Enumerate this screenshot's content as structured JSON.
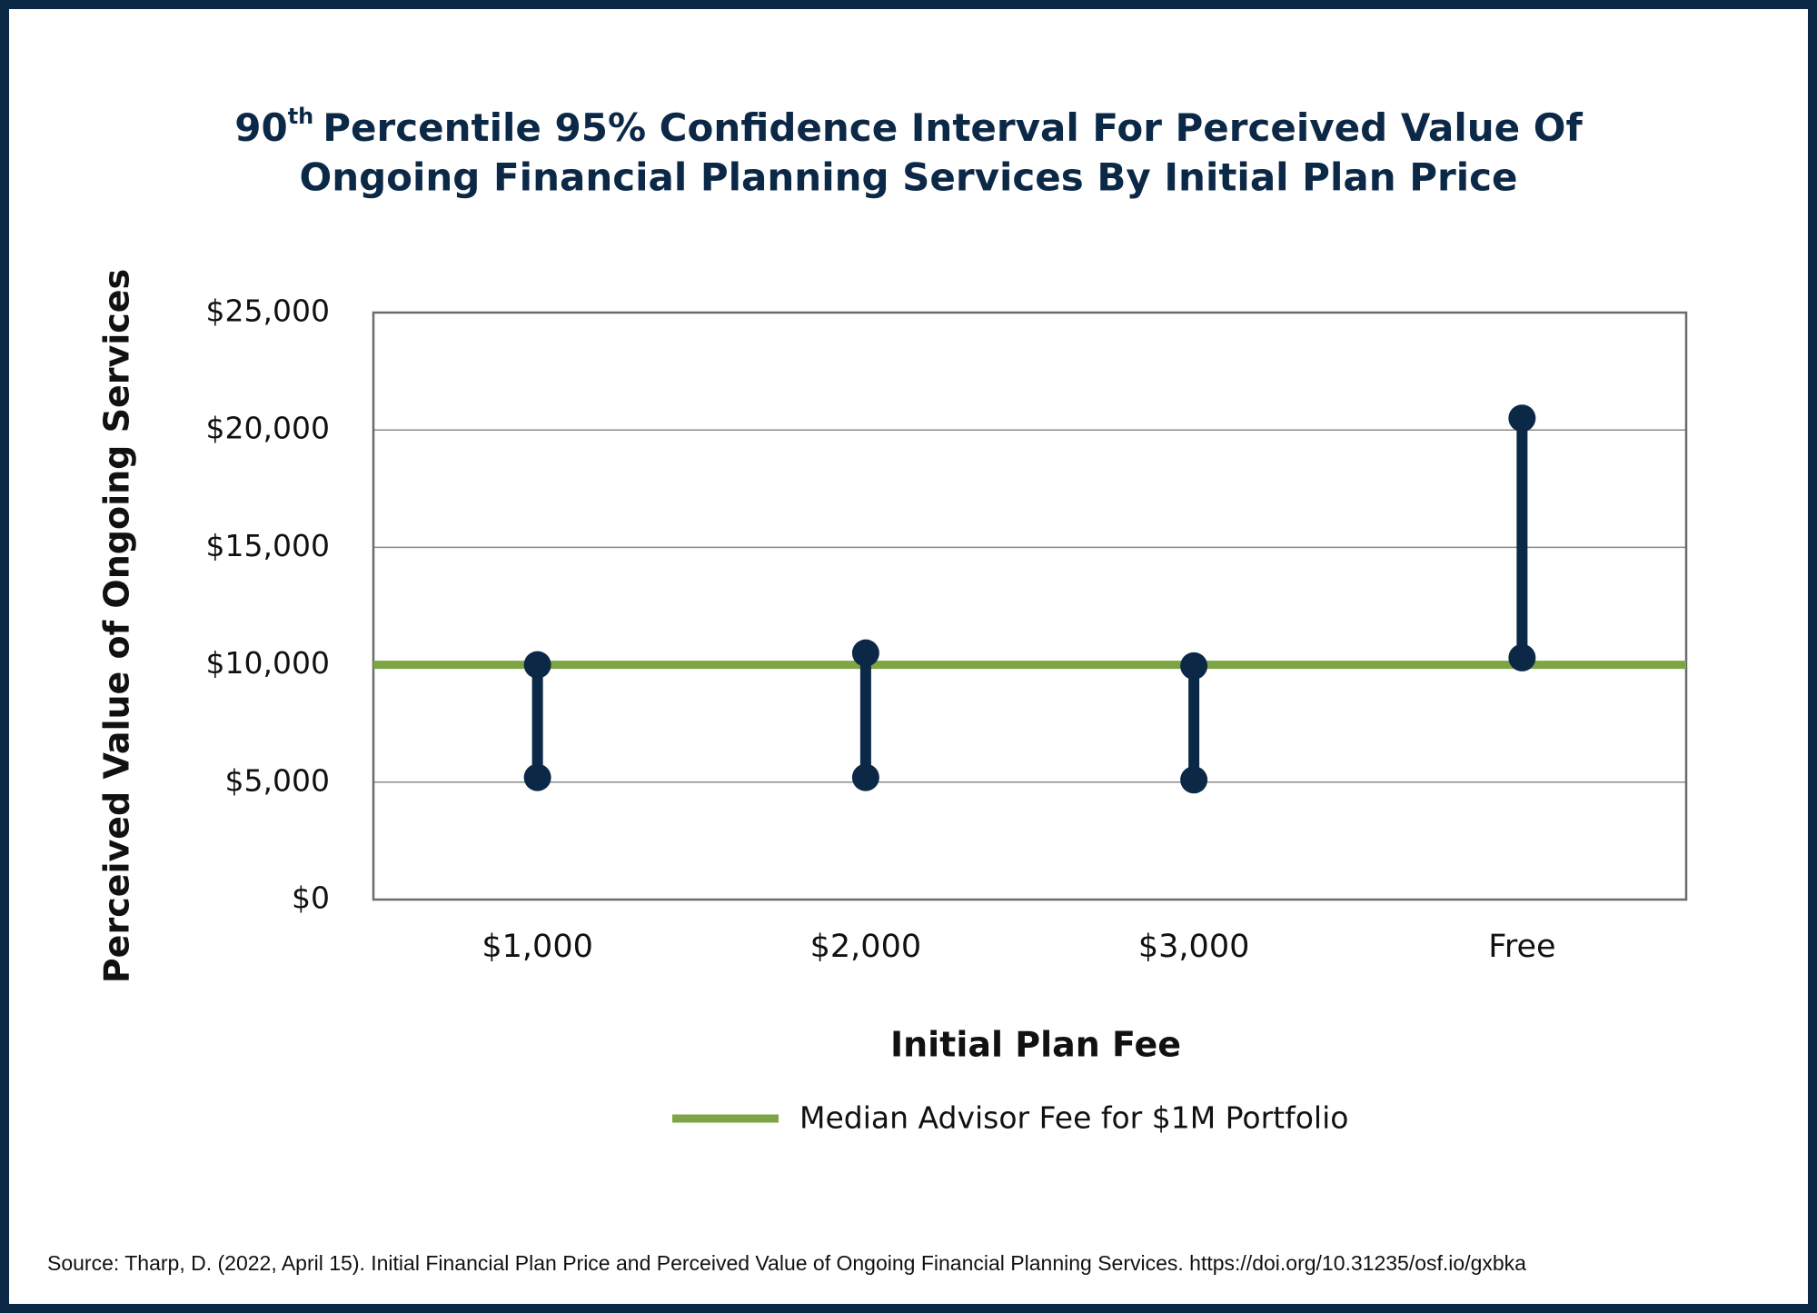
{
  "chart_data": {
    "type": "range",
    "title_number": "90",
    "title_superscript": "th",
    "title_line1": "Percentile 95% Confidence Interval For Perceived Value Of",
    "title_line2": "Ongoing Financial Planning Services By Initial Plan Price",
    "x_label": "Initial Plan Fee",
    "y_label": "Perceived Value of Ongoing Services",
    "categories": [
      "$1,000",
      "$2,000",
      "$3,000",
      "Free"
    ],
    "low": [
      5200,
      5200,
      5100,
      10300
    ],
    "high": [
      10000,
      10500,
      9950,
      20500
    ],
    "color": "#0c2847",
    "reference_line": {
      "value": 10000,
      "label": "Median Advisor Fee for $1M Portfolio",
      "color": "#7ea544"
    },
    "ylim": [
      0,
      25000
    ],
    "yticks": [
      {
        "value": 0,
        "label": "$0"
      },
      {
        "value": 5000,
        "label": "$5,000"
      },
      {
        "value": 10000,
        "label": "$10,000"
      },
      {
        "value": 15000,
        "label": "$15,000"
      },
      {
        "value": 20000,
        "label": "$20,000"
      },
      {
        "value": 25000,
        "label": "$25,000"
      }
    ],
    "grid": true,
    "source": "Source: Tharp, D. (2022, April 15). Initial Financial Plan Price and Perceived Value of Ongoing Financial Planning Services. https://doi.org/10.31235/osf.io/gxbka"
  }
}
